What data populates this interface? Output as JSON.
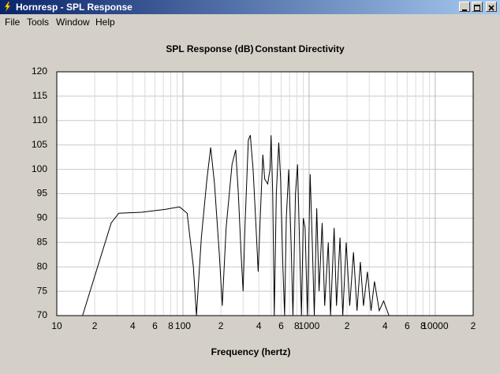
{
  "window": {
    "title": "Hornresp - SPL Response",
    "menu": [
      "File",
      "Tools",
      "Window",
      "Help"
    ]
  },
  "chart_data": {
    "type": "line",
    "title": "SPL Response (dB)",
    "subtitle": "Constant Directivity",
    "x_label": "Frequency (hertz)",
    "x_log": true,
    "grid": true,
    "color": "#000000",
    "xlim": [
      10,
      20000
    ],
    "ylim": [
      70,
      120
    ],
    "yticks": [
      70,
      75,
      80,
      85,
      90,
      95,
      100,
      105,
      110,
      115,
      120
    ],
    "xticks": [
      10,
      {
        "value": 20,
        "label": "2"
      },
      {
        "value": 40,
        "label": "4"
      },
      {
        "value": 60,
        "label": "6"
      },
      {
        "value": 80,
        "label": "8"
      },
      100,
      {
        "value": 200,
        "label": "2"
      },
      {
        "value": 400,
        "label": "4"
      },
      {
        "value": 600,
        "label": "6"
      },
      {
        "value": 800,
        "label": "8"
      },
      1000,
      {
        "value": 2000,
        "label": "2"
      },
      {
        "value": 4000,
        "label": "4"
      },
      {
        "value": 6000,
        "label": "6"
      },
      {
        "value": 8000,
        "label": "8"
      },
      10000,
      {
        "value": 20000,
        "label": "2"
      }
    ],
    "x_minor_ticks": [
      30,
      50,
      70,
      90,
      300,
      500,
      700,
      900,
      3000,
      5000,
      7000,
      9000
    ],
    "x": [
      16,
      27,
      31,
      47,
      73,
      94,
      108,
      121,
      128,
      140,
      155,
      166,
      178,
      195,
      205,
      220,
      245,
      262,
      275,
      290,
      300,
      310,
      330,
      342,
      360,
      380,
      395,
      410,
      430,
      445,
      470,
      490,
      500,
      515,
      530,
      550,
      575,
      595,
      620,
      640,
      660,
      690,
      720,
      745,
      780,
      810,
      840,
      870,
      900,
      930,
      970,
      1020,
      1060,
      1100,
      1150,
      1200,
      1270,
      1330,
      1420,
      1480,
      1580,
      1650,
      1760,
      1850,
      1970,
      2100,
      2250,
      2400,
      2550,
      2700,
      2900,
      3100,
      3300,
      3600,
      3900,
      4300,
      4500
    ],
    "values": [
      70,
      89,
      91,
      91.2,
      91.8,
      92.3,
      91,
      80,
      70,
      86,
      98,
      104.5,
      97,
      82,
      72,
      88,
      101,
      104,
      95,
      82,
      75,
      88,
      106,
      107,
      100,
      88,
      79,
      90,
      103,
      98,
      97,
      100,
      107,
      95,
      70,
      95,
      105.5,
      98,
      80,
      70,
      90,
      100,
      85,
      70,
      95,
      101,
      85,
      70,
      90,
      88,
      70,
      99,
      85,
      70,
      92,
      75,
      89,
      72,
      85,
      70,
      88,
      72,
      86,
      70,
      85,
      72,
      83,
      71,
      81,
      72,
      79,
      71,
      77,
      71,
      73,
      70,
      70
    ]
  }
}
